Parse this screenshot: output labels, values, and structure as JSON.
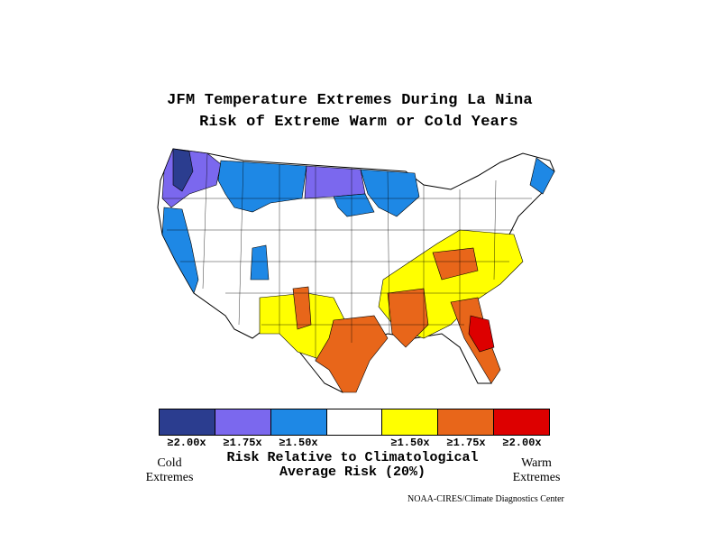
{
  "title_line1": "JFM Temperature Extremes During La Nina",
  "title_line2": "Risk of Extreme Warm or Cold Years",
  "legend": {
    "colors": [
      "#2b3d8f",
      "#7b68ee",
      "#1e88e5",
      "#ffffff",
      "#ffff00",
      "#e8661a",
      "#dd0000"
    ],
    "ticks": [
      "≥2.00x",
      "≥1.75x",
      "≥1.50x",
      "≥1.50x",
      "≥1.75x",
      "≥2.00x"
    ]
  },
  "cold_label_1": "Cold",
  "cold_label_2": "Extremes",
  "warm_label_1": "Warm",
  "warm_label_2": "Extremes",
  "center_label_1": "Risk Relative to Climatological",
  "center_label_2": "Average Risk (20%)",
  "credit": "NOAA-CIRES/Climate Diagnostics Center"
}
